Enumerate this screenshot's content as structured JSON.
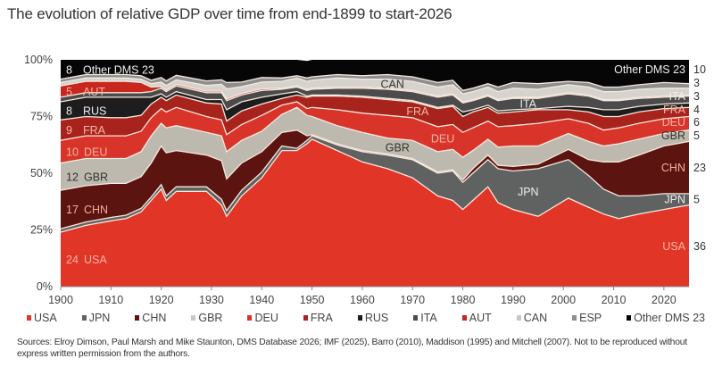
{
  "title": "The evolution of relative GDP over time from end-1899 to start-2026",
  "chart_data": {
    "type": "area",
    "stacked": true,
    "title": "The evolution of relative GDP over time from end-1899 to start-2026",
    "xlabel": "",
    "ylabel": "",
    "xlim": [
      1900,
      2025
    ],
    "ylim": [
      0,
      100
    ],
    "x_ticks": [
      "1900",
      "1910",
      "1920",
      "1930",
      "1940",
      "1950",
      "1960",
      "1970",
      "1980",
      "1990",
      "2000",
      "2010",
      "2020"
    ],
    "y_ticks": [
      "0%",
      "25%",
      "50%",
      "75%",
      "100%"
    ],
    "grid": false,
    "legend_position": "bottom",
    "x": [
      1900,
      1905,
      1910,
      1913,
      1916,
      1918,
      1920,
      1921,
      1923,
      1929,
      1932,
      1933,
      1936,
      1940,
      1944,
      1947,
      1949,
      1950,
      1955,
      1960,
      1965,
      1970,
      1975,
      1978,
      1980,
      1982,
      1985,
      1987,
      1990,
      1995,
      2001,
      2005,
      2008,
      2011,
      2015,
      2020,
      2025
    ],
    "series": [
      {
        "name": "USA",
        "color": "#e03527",
        "values": [
          24,
          27,
          29,
          30,
          33,
          38,
          43,
          38,
          42,
          42,
          36,
          31,
          40,
          48,
          60,
          60,
          63,
          65,
          60,
          55,
          52,
          48,
          40,
          38,
          34,
          38,
          44,
          37,
          34,
          31,
          39,
          35,
          32,
          30,
          32,
          34,
          36
        ]
      },
      {
        "name": "JPN",
        "color": "#5f6260",
        "values": [
          1.5,
          1.5,
          1.5,
          1.5,
          1.5,
          1.5,
          2,
          2,
          2,
          2,
          2.5,
          2.5,
          2.5,
          2.5,
          2,
          1,
          1.5,
          1.5,
          2.5,
          4.5,
          6,
          8,
          10,
          13,
          12,
          12,
          12,
          15,
          17,
          21,
          17,
          14,
          11,
          10,
          8,
          7,
          5
        ]
      },
      {
        "name": "CHN",
        "color": "#5c1410",
        "values": [
          17,
          16,
          15,
          14,
          14,
          15,
          17,
          19,
          16,
          14,
          17,
          14,
          12,
          9,
          6,
          8,
          2,
          0.5,
          0.5,
          0.5,
          0.5,
          0.5,
          0.5,
          0.5,
          1,
          2,
          2,
          1.5,
          2,
          2,
          4.5,
          7,
          12,
          15,
          18,
          21,
          23
        ]
      },
      {
        "name": "GBR",
        "color": "#bdb9ae",
        "values": [
          12,
          12,
          11,
          11,
          11,
          12,
          10,
          11,
          11,
          10,
          11,
          12,
          10,
          9,
          8,
          10,
          9,
          8,
          8,
          8,
          7,
          8,
          9,
          9,
          10,
          8,
          7,
          8,
          9,
          8,
          7,
          8,
          7,
          8,
          7,
          5.5,
          5
        ]
      },
      {
        "name": "DEU",
        "color": "#d8342a",
        "values": [
          10,
          10,
          10,
          10,
          9,
          8,
          6.5,
          7,
          8,
          7,
          7,
          7.5,
          7,
          7,
          4,
          2.5,
          3,
          4,
          7,
          8.5,
          10,
          10,
          11,
          11,
          11,
          10,
          8,
          9,
          9,
          10,
          6.5,
          8,
          7,
          7,
          7,
          6.5,
          6
        ]
      },
      {
        "name": "FRA",
        "color": "#a8231c",
        "values": [
          9,
          8.5,
          8,
          8,
          7,
          6,
          5,
          5,
          5.5,
          6,
          7,
          6,
          6,
          5,
          3,
          3,
          5,
          5,
          6,
          7,
          7,
          7,
          8,
          8,
          7,
          7,
          6,
          6,
          6,
          6,
          4,
          5,
          6,
          5,
          5,
          4.5,
          4
        ]
      },
      {
        "name": "RUS",
        "color": "#1d1d1d",
        "values": [
          8,
          8.5,
          9,
          9,
          8,
          3,
          1.5,
          1.5,
          1.5,
          1.5,
          2,
          5,
          4,
          3,
          2,
          1.5,
          0.5,
          0.5,
          0.5,
          0.5,
          0.5,
          0.5,
          0.5,
          0.5,
          2,
          1,
          1,
          1,
          1,
          0.5,
          1.5,
          2,
          3,
          3,
          2.5,
          2,
          2
        ]
      },
      {
        "name": "ITA",
        "color": "#4b4b4b",
        "values": [
          2,
          2,
          2,
          2,
          2,
          2.5,
          2.5,
          2.5,
          2.5,
          3,
          3,
          4,
          3,
          3,
          2,
          2,
          2.5,
          2.5,
          3,
          3.5,
          4,
          4,
          4.5,
          4.5,
          4,
          4,
          4,
          4.5,
          5,
          4.5,
          5.5,
          5,
          4,
          4,
          3.5,
          3,
          3
        ]
      },
      {
        "name": "AUT",
        "color": "#c7271d",
        "values": [
          5,
          5,
          5,
          5,
          4.5,
          2,
          0.7,
          0.7,
          0.7,
          0.7,
          0.7,
          0.7,
          0.7,
          0.7,
          0.5,
          0.5,
          0.5,
          0.5,
          0.5,
          0.5,
          0.5,
          0.5,
          0.5,
          0.5,
          0.5,
          0.5,
          0.5,
          0.5,
          0.5,
          0.5,
          0.5,
          0.5,
          0.5,
          0.5,
          0.5,
          0.5,
          0.5
        ]
      },
      {
        "name": "CAN",
        "color": "#d6d3cc",
        "values": [
          1.5,
          1.5,
          1.5,
          1.5,
          1.5,
          1.5,
          2,
          2,
          2,
          2.5,
          3,
          4.5,
          3,
          3,
          3,
          3.5,
          3.5,
          3.5,
          4,
          3.5,
          4,
          4,
          4,
          4,
          3.5,
          3.5,
          3.5,
          3.5,
          4,
          3.5,
          3.5,
          3.5,
          3.5,
          3.5,
          3.5,
          3.5,
          3
        ]
      },
      {
        "name": "ESP",
        "color": "#8e8e8e",
        "values": [
          1.5,
          1.5,
          1.5,
          1.5,
          1.5,
          1.5,
          2,
          2,
          2,
          2,
          2,
          2.8,
          2,
          2,
          1.5,
          1,
          1.5,
          1.5,
          1.5,
          1.5,
          2,
          2,
          2,
          2,
          1.5,
          1.5,
          1.5,
          2,
          2.5,
          2.5,
          1.5,
          2,
          2,
          2,
          2,
          2.5,
          2
        ]
      },
      {
        "name": "Other DMS 23",
        "color": "#060606",
        "values": [
          8.5,
          6.5,
          6.5,
          6.5,
          7,
          9,
          7.8,
          9.3,
          8.8,
          9.3,
          8.8,
          10,
          9.8,
          7.8,
          8,
          7,
          7.5,
          7.5,
          6.5,
          7,
          6.5,
          7.5,
          10,
          9,
          13.5,
          12.5,
          10.5,
          12,
          10,
          10.5,
          9.5,
          10,
          12,
          12,
          11,
          10.5,
          10.5
        ]
      }
    ],
    "start_labels": [
      {
        "series": "USA",
        "value": "24",
        "label": "USA"
      },
      {
        "series": "CHN",
        "value": "17",
        "label": "CHN"
      },
      {
        "series": "GBR",
        "value": "12",
        "label": "GBR"
      },
      {
        "series": "DEU",
        "value": "10",
        "label": "DEU"
      },
      {
        "series": "FRA",
        "value": "9",
        "label": "FRA"
      },
      {
        "series": "RUS",
        "value": "8",
        "label": "RUS"
      },
      {
        "series": "AUT",
        "value": "5",
        "label": "AUT"
      },
      {
        "series": "Other DMS 23",
        "value": "8",
        "label": "Other DMS 23"
      }
    ],
    "end_labels": [
      {
        "series": "USA",
        "value": "36",
        "label": "USA"
      },
      {
        "series": "JPN",
        "value": "5",
        "label": "JPN"
      },
      {
        "series": "CHN",
        "value": "23",
        "label": "CHN"
      },
      {
        "series": "GBR",
        "value": "5",
        "label": "GBR"
      },
      {
        "series": "DEU",
        "value": "6",
        "label": "DEU"
      },
      {
        "series": "FRA",
        "value": "4",
        "label": "FRA"
      },
      {
        "series": "ITA",
        "value": "3",
        "label": "ITA"
      },
      {
        "series": "CAN",
        "value": "3",
        "label": ""
      },
      {
        "series": "Other DMS 23",
        "value": "10",
        "label": "Other DMS 23"
      }
    ],
    "annotations": [
      {
        "series": "CAN",
        "year": 1966,
        "label": "CAN"
      },
      {
        "series": "FRA",
        "year": 1971,
        "label": "FRA"
      },
      {
        "series": "GBR",
        "year": 1967,
        "label": "GBR"
      },
      {
        "series": "DEU",
        "year": 1976,
        "label": "DEU"
      },
      {
        "series": "ITA",
        "year": 1993,
        "label": "ITA"
      },
      {
        "series": "JPN",
        "year": 1993,
        "label": "JPN"
      }
    ]
  },
  "legend": [
    "USA",
    "JPN",
    "CHN",
    "GBR",
    "DEU",
    "FRA",
    "RUS",
    "ITA",
    "AUT",
    "CAN",
    "ESP",
    "Other DMS 23"
  ],
  "sources": "Sources: Elroy Dimson, Paul Marsh and Mike Staunton, DMS Database 2026; IMF (2025), Barro (2010), Maddison (1995) and Mitchell (2007). Not to be reproduced without express written permission from the authors."
}
